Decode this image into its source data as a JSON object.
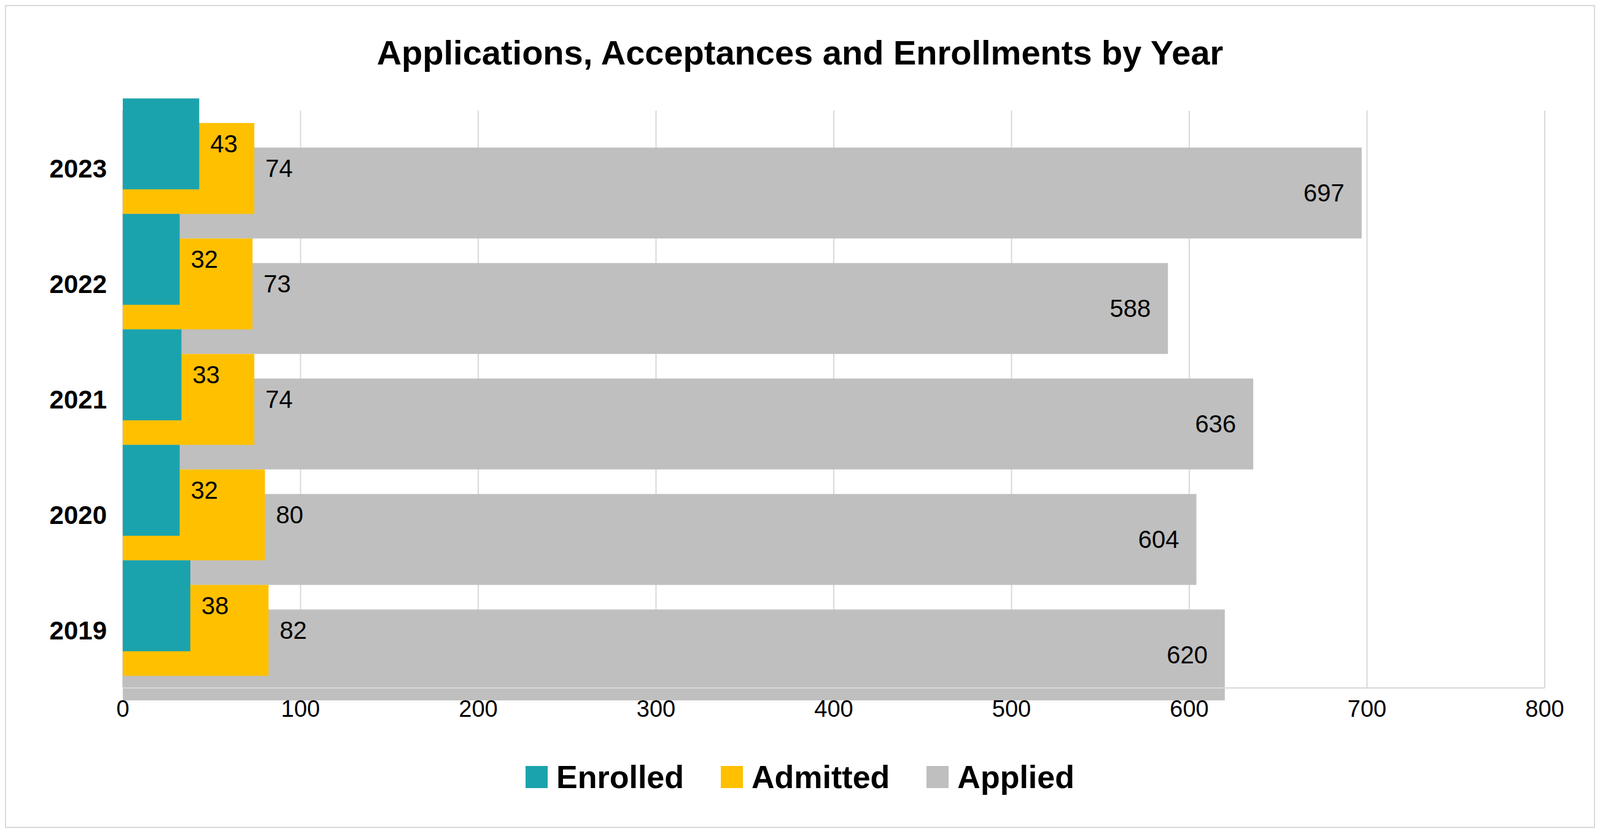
{
  "chart_data": {
    "type": "bar",
    "title": "Applications, Acceptances and Enrollments by Year",
    "orientation": "horizontal",
    "categories": [
      "2023",
      "2022",
      "2021",
      "2020",
      "2019"
    ],
    "series": [
      {
        "name": "Enrolled",
        "color": "#1ba3ad",
        "values": [
          43,
          32,
          33,
          32,
          38
        ]
      },
      {
        "name": "Admitted",
        "color": "#ffc000",
        "values": [
          74,
          73,
          74,
          80,
          82
        ]
      },
      {
        "name": "Applied",
        "color": "#bfbfbf",
        "values": [
          697,
          588,
          636,
          604,
          620
        ]
      }
    ],
    "xlim": [
      0,
      800
    ],
    "xticks": [
      0,
      100,
      200,
      300,
      400,
      500,
      600,
      700,
      800
    ],
    "grid": true,
    "data_labels": true,
    "legend": "bottom"
  }
}
